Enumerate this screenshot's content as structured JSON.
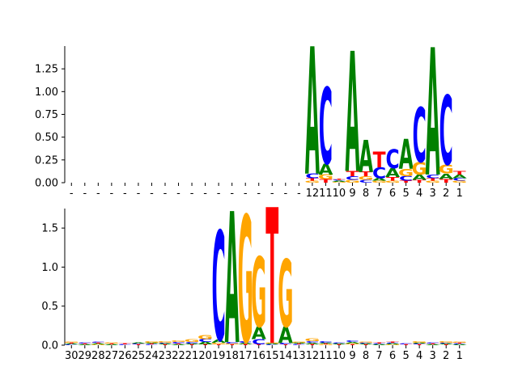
{
  "colors": {
    "A": "#008000",
    "C": "#0000ff",
    "G": "#ffa500",
    "T": "#ff0000"
  },
  "chart_data": [
    {
      "type": "sequence-logo",
      "title": "",
      "xlabel": "",
      "ylabel": "",
      "ylim": [
        0,
        1.5
      ],
      "yticks": [
        "0.00",
        "0.25",
        "0.50",
        "0.75",
        "1.00",
        "1.25"
      ],
      "xtick_labels": [
        "-",
        "-",
        "-",
        "-",
        "-",
        "-",
        "-",
        "-",
        "-",
        "-",
        "-",
        "-",
        "-",
        "-",
        "-",
        "-",
        "-",
        "-",
        "12",
        "11",
        "10",
        "9",
        "8",
        "7",
        "6",
        "5",
        "4",
        "3",
        "2",
        "1"
      ],
      "positions": [
        {
          "label": "-",
          "letters": []
        },
        {
          "label": "-",
          "letters": []
        },
        {
          "label": "-",
          "letters": []
        },
        {
          "label": "-",
          "letters": []
        },
        {
          "label": "-",
          "letters": []
        },
        {
          "label": "-",
          "letters": []
        },
        {
          "label": "-",
          "letters": []
        },
        {
          "label": "-",
          "letters": []
        },
        {
          "label": "-",
          "letters": []
        },
        {
          "label": "-",
          "letters": []
        },
        {
          "label": "-",
          "letters": []
        },
        {
          "label": "-",
          "letters": []
        },
        {
          "label": "-",
          "letters": []
        },
        {
          "label": "-",
          "letters": []
        },
        {
          "label": "-",
          "letters": []
        },
        {
          "label": "-",
          "letters": []
        },
        {
          "label": "-",
          "letters": []
        },
        {
          "label": "-",
          "letters": []
        },
        {
          "label": "12",
          "letters": [
            {
              "base": "G",
              "height": 0.02
            },
            {
              "base": "T",
              "height": 0.03
            },
            {
              "base": "C",
              "height": 0.05
            },
            {
              "base": "A",
              "height": 1.4
            }
          ]
        },
        {
          "label": "11",
          "letters": [
            {
              "base": "T",
              "height": 0.04
            },
            {
              "base": "G",
              "height": 0.05
            },
            {
              "base": "A",
              "height": 0.12
            },
            {
              "base": "C",
              "height": 0.84
            }
          ]
        },
        {
          "label": "10",
          "letters": [
            {
              "base": "G",
              "height": 0.01
            },
            {
              "base": "A",
              "height": 0.01
            },
            {
              "base": "C",
              "height": 0.01
            },
            {
              "base": "T",
              "height": 0.01
            }
          ]
        },
        {
          "label": "9",
          "letters": [
            {
              "base": "G",
              "height": 0.03
            },
            {
              "base": "C",
              "height": 0.04
            },
            {
              "base": "T",
              "height": 0.06
            },
            {
              "base": "A",
              "height": 1.32
            }
          ]
        },
        {
          "label": "8",
          "letters": [
            {
              "base": "C",
              "height": 0.03
            },
            {
              "base": "G",
              "height": 0.04
            },
            {
              "base": "T",
              "height": 0.05
            },
            {
              "base": "A",
              "height": 0.35
            }
          ]
        },
        {
          "label": "7",
          "letters": [
            {
              "base": "G",
              "height": 0.02
            },
            {
              "base": "A",
              "height": 0.03
            },
            {
              "base": "C",
              "height": 0.12
            },
            {
              "base": "T",
              "height": 0.17
            }
          ]
        },
        {
          "label": "6",
          "letters": [
            {
              "base": "G",
              "height": 0.02
            },
            {
              "base": "T",
              "height": 0.04
            },
            {
              "base": "A",
              "height": 0.1
            },
            {
              "base": "C",
              "height": 0.21
            }
          ]
        },
        {
          "label": "5",
          "letters": [
            {
              "base": "T",
              "height": 0.02
            },
            {
              "base": "C",
              "height": 0.05
            },
            {
              "base": "G",
              "height": 0.08
            },
            {
              "base": "A",
              "height": 0.33
            }
          ]
        },
        {
          "label": "4",
          "letters": [
            {
              "base": "T",
              "height": 0.03
            },
            {
              "base": "A",
              "height": 0.06
            },
            {
              "base": "G",
              "height": 0.14
            },
            {
              "base": "C",
              "height": 0.6
            }
          ]
        },
        {
          "label": "3",
          "letters": [
            {
              "base": "G",
              "height": 0.02
            },
            {
              "base": "T",
              "height": 0.03
            },
            {
              "base": "C",
              "height": 0.04
            },
            {
              "base": "A",
              "height": 1.4
            }
          ]
        },
        {
          "label": "2",
          "letters": [
            {
              "base": "T",
              "height": 0.04
            },
            {
              "base": "A",
              "height": 0.06
            },
            {
              "base": "G",
              "height": 0.1
            },
            {
              "base": "C",
              "height": 0.76
            }
          ]
        },
        {
          "label": "1",
          "letters": [
            {
              "base": "G",
              "height": 0.02
            },
            {
              "base": "C",
              "height": 0.03
            },
            {
              "base": "A",
              "height": 0.04
            },
            {
              "base": "T",
              "height": 0.04
            }
          ]
        }
      ]
    },
    {
      "type": "sequence-logo",
      "title": "",
      "xlabel": "",
      "ylabel": "",
      "ylim": [
        0,
        1.75
      ],
      "yticks": [
        "0.0",
        "0.5",
        "1.0",
        "1.5"
      ],
      "xtick_labels": [
        "30",
        "29",
        "28",
        "27",
        "26",
        "25",
        "24",
        "23",
        "22",
        "21",
        "20",
        "19",
        "18",
        "17",
        "16",
        "15",
        "14",
        "13",
        "12",
        "11",
        "10",
        "9",
        "8",
        "7",
        "6",
        "5",
        "4",
        "3",
        "2",
        "1"
      ],
      "positions": [
        {
          "label": "30",
          "letters": [
            {
              "base": "C",
              "height": 0.01
            },
            {
              "base": "A",
              "height": 0.01
            },
            {
              "base": "T",
              "height": 0.01
            },
            {
              "base": "G",
              "height": 0.01
            }
          ]
        },
        {
          "label": "29",
          "letters": [
            {
              "base": "A",
              "height": 0.01
            },
            {
              "base": "T",
              "height": 0.01
            },
            {
              "base": "C",
              "height": 0.01
            }
          ]
        },
        {
          "label": "28",
          "letters": [
            {
              "base": "G",
              "height": 0.01
            },
            {
              "base": "A",
              "height": 0.01
            },
            {
              "base": "T",
              "height": 0.01
            },
            {
              "base": "C",
              "height": 0.01
            }
          ]
        },
        {
          "label": "27",
          "letters": [
            {
              "base": "A",
              "height": 0.01
            },
            {
              "base": "T",
              "height": 0.01
            },
            {
              "base": "G",
              "height": 0.01
            }
          ]
        },
        {
          "label": "26",
          "letters": [
            {
              "base": "C",
              "height": 0.01
            },
            {
              "base": "T",
              "height": 0.01
            }
          ]
        },
        {
          "label": "25",
          "letters": [
            {
              "base": "T",
              "height": 0.01
            },
            {
              "base": "C",
              "height": 0.01
            },
            {
              "base": "A",
              "height": 0.01
            }
          ]
        },
        {
          "label": "24",
          "letters": [
            {
              "base": "C",
              "height": 0.01
            },
            {
              "base": "T",
              "height": 0.01
            },
            {
              "base": "A",
              "height": 0.01
            },
            {
              "base": "G",
              "height": 0.02
            }
          ]
        },
        {
          "label": "23",
          "letters": [
            {
              "base": "T",
              "height": 0.01
            },
            {
              "base": "A",
              "height": 0.01
            },
            {
              "base": "C",
              "height": 0.01
            },
            {
              "base": "G",
              "height": 0.02
            }
          ]
        },
        {
          "label": "22",
          "letters": [
            {
              "base": "A",
              "height": 0.01
            },
            {
              "base": "T",
              "height": 0.01
            },
            {
              "base": "C",
              "height": 0.02
            },
            {
              "base": "G",
              "height": 0.02
            }
          ]
        },
        {
          "label": "21",
          "letters": [
            {
              "base": "T",
              "height": 0.01
            },
            {
              "base": "A",
              "height": 0.01
            },
            {
              "base": "C",
              "height": 0.02
            },
            {
              "base": "G",
              "height": 0.03
            }
          ]
        },
        {
          "label": "20",
          "letters": [
            {
              "base": "T",
              "height": 0.01
            },
            {
              "base": "A",
              "height": 0.03
            },
            {
              "base": "C",
              "height": 0.04
            },
            {
              "base": "G",
              "height": 0.05
            }
          ]
        },
        {
          "label": "19",
          "letters": [
            {
              "base": "T",
              "height": 0.01
            },
            {
              "base": "G",
              "height": 0.02
            },
            {
              "base": "A",
              "height": 0.04
            },
            {
              "base": "C",
              "height": 1.4
            }
          ]
        },
        {
          "label": "18",
          "letters": [
            {
              "base": "T",
              "height": 0.01
            },
            {
              "base": "G",
              "height": 0.01
            },
            {
              "base": "C",
              "height": 0.02
            },
            {
              "base": "A",
              "height": 1.68
            }
          ]
        },
        {
          "label": "17",
          "letters": [
            {
              "base": "T",
              "height": 0.01
            },
            {
              "base": "A",
              "height": 0.02
            },
            {
              "base": "C",
              "height": 0.02
            },
            {
              "base": "G",
              "height": 1.62
            }
          ]
        },
        {
          "label": "16",
          "letters": [
            {
              "base": "T",
              "height": 0.01
            },
            {
              "base": "C",
              "height": 0.07
            },
            {
              "base": "A",
              "height": 0.16
            },
            {
              "base": "G",
              "height": 0.9
            }
          ]
        },
        {
          "label": "15",
          "letters": [
            {
              "base": "C",
              "height": 0.01
            },
            {
              "base": "A",
              "height": 0.01
            },
            {
              "base": "G",
              "height": 0.01
            },
            {
              "base": "T",
              "height": 1.74
            }
          ]
        },
        {
          "label": "14",
          "letters": [
            {
              "base": "T",
              "height": 0.01
            },
            {
              "base": "C",
              "height": 0.02
            },
            {
              "base": "A",
              "height": 0.21
            },
            {
              "base": "G",
              "height": 0.86
            }
          ]
        },
        {
          "label": "13",
          "letters": [
            {
              "base": "C",
              "height": 0.01
            },
            {
              "base": "T",
              "height": 0.01
            },
            {
              "base": "A",
              "height": 0.01
            },
            {
              "base": "G",
              "height": 0.01
            }
          ]
        },
        {
          "label": "12",
          "letters": [
            {
              "base": "T",
              "height": 0.01
            },
            {
              "base": "A",
              "height": 0.02
            },
            {
              "base": "C",
              "height": 0.02
            },
            {
              "base": "G",
              "height": 0.03
            }
          ]
        },
        {
          "label": "11",
          "letters": [
            {
              "base": "G",
              "height": 0.01
            },
            {
              "base": "T",
              "height": 0.01
            },
            {
              "base": "A",
              "height": 0.01
            },
            {
              "base": "C",
              "height": 0.02
            }
          ]
        },
        {
          "label": "10",
          "letters": [
            {
              "base": "T",
              "height": 0.01
            },
            {
              "base": "A",
              "height": 0.01
            },
            {
              "base": "C",
              "height": 0.01
            }
          ]
        },
        {
          "label": "9",
          "letters": [
            {
              "base": "T",
              "height": 0.01
            },
            {
              "base": "G",
              "height": 0.01
            },
            {
              "base": "A",
              "height": 0.02
            },
            {
              "base": "C",
              "height": 0.02
            }
          ]
        },
        {
          "label": "8",
          "letters": [
            {
              "base": "T",
              "height": 0.01
            },
            {
              "base": "A",
              "height": 0.01
            },
            {
              "base": "C",
              "height": 0.01
            },
            {
              "base": "G",
              "height": 0.01
            }
          ]
        },
        {
          "label": "7",
          "letters": [
            {
              "base": "A",
              "height": 0.01
            },
            {
              "base": "C",
              "height": 0.01
            },
            {
              "base": "T",
              "height": 0.01
            }
          ]
        },
        {
          "label": "6",
          "letters": [
            {
              "base": "G",
              "height": 0.01
            },
            {
              "base": "A",
              "height": 0.01
            },
            {
              "base": "C",
              "height": 0.01
            },
            {
              "base": "T",
              "height": 0.01
            }
          ]
        },
        {
          "label": "5",
          "letters": [
            {
              "base": "T",
              "height": 0.01
            },
            {
              "base": "C",
              "height": 0.01
            }
          ]
        },
        {
          "label": "4",
          "letters": [
            {
              "base": "T",
              "height": 0.01
            },
            {
              "base": "C",
              "height": 0.01
            },
            {
              "base": "A",
              "height": 0.01
            },
            {
              "base": "G",
              "height": 0.02
            }
          ]
        },
        {
          "label": "3",
          "letters": [
            {
              "base": "A",
              "height": 0.01
            },
            {
              "base": "T",
              "height": 0.01
            },
            {
              "base": "C",
              "height": 0.01
            }
          ]
        },
        {
          "label": "2",
          "letters": [
            {
              "base": "T",
              "height": 0.01
            },
            {
              "base": "A",
              "height": 0.01
            },
            {
              "base": "C",
              "height": 0.01
            },
            {
              "base": "G",
              "height": 0.02
            }
          ]
        },
        {
          "label": "1",
          "letters": [
            {
              "base": "A",
              "height": 0.01
            },
            {
              "base": "C",
              "height": 0.01
            },
            {
              "base": "T",
              "height": 0.01
            },
            {
              "base": "G",
              "height": 0.01
            }
          ]
        }
      ]
    }
  ]
}
